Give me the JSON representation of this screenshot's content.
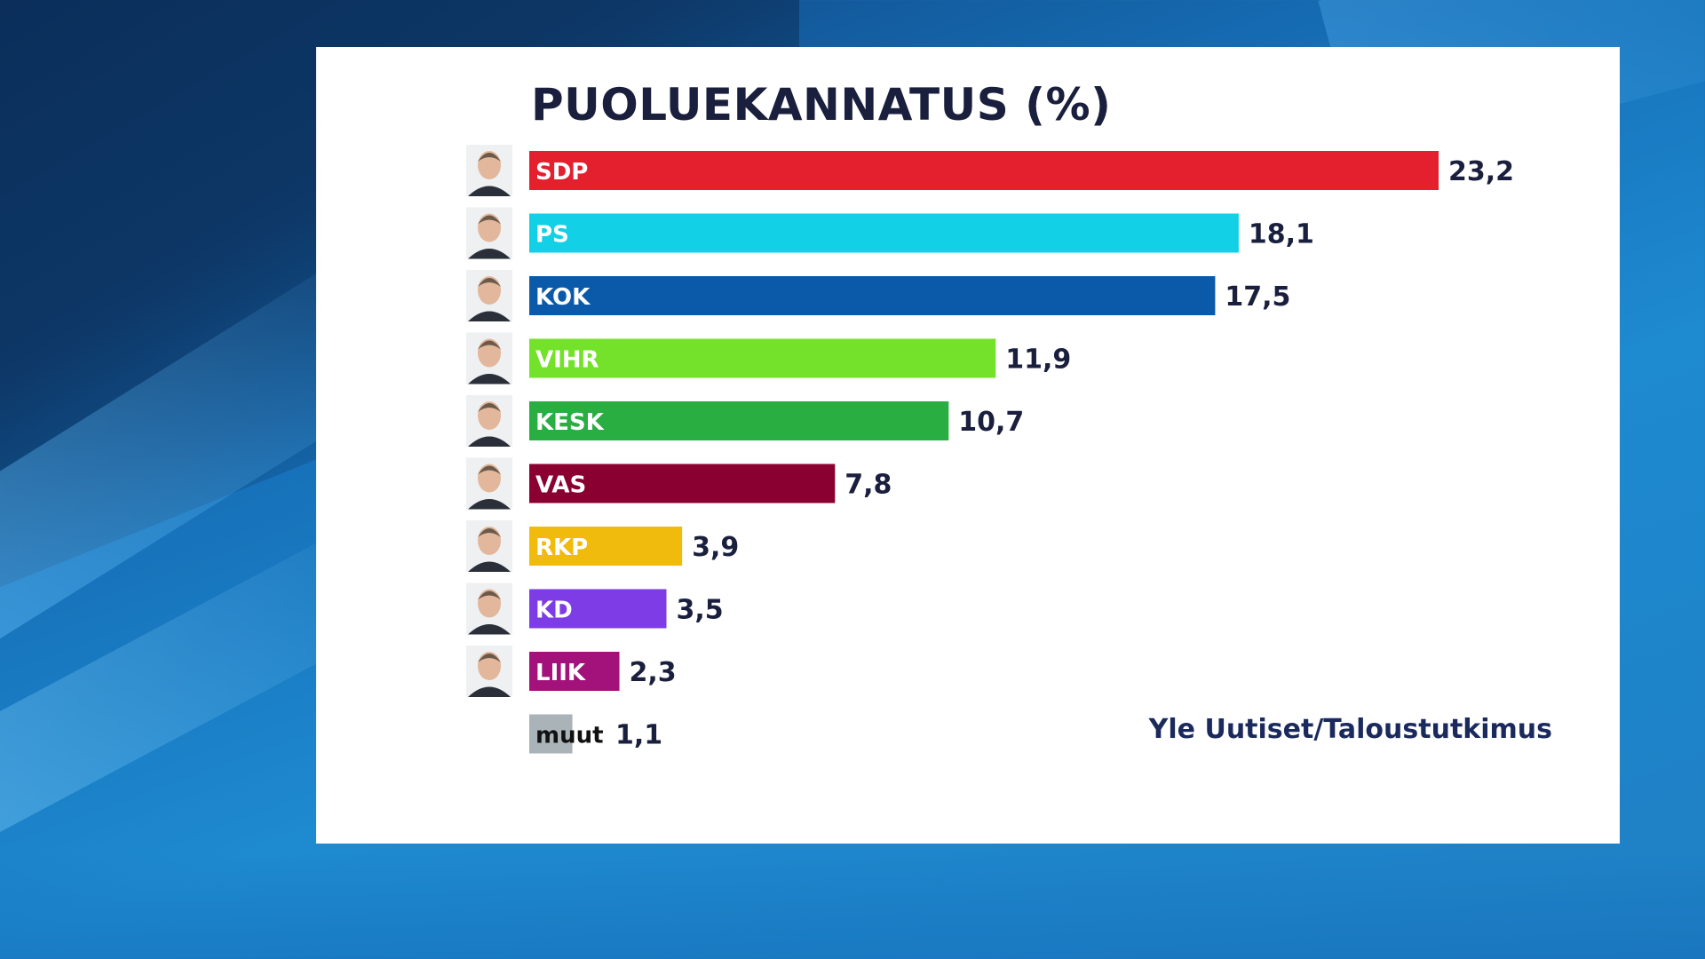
{
  "chart_data": {
    "type": "bar",
    "orientation": "horizontal",
    "title": "PUOLUEKANNATUS (%)",
    "categories": [
      "SDP",
      "PS",
      "KOK",
      "VIHR",
      "KESK",
      "VAS",
      "RKP",
      "KD",
      "LIIK",
      "muut"
    ],
    "values": [
      23.2,
      18.1,
      17.5,
      11.9,
      10.7,
      7.8,
      3.9,
      3.5,
      2.3,
      1.1
    ],
    "value_labels": [
      "23,2",
      "18,1",
      "17,5",
      "11,9",
      "10,7",
      "7,8",
      "3,9",
      "3,5",
      "2,3",
      "1,1"
    ],
    "colors": [
      "#e41f2e",
      "#12d0e6",
      "#0b5aaa",
      "#74e22b",
      "#29ae42",
      "#8a0030",
      "#f0bb0c",
      "#7d3ce6",
      "#a3127a",
      "#a9b3b8"
    ],
    "label_colors": [
      "#ffffff",
      "#ffffff",
      "#ffffff",
      "#ffffff",
      "#ffffff",
      "#ffffff",
      "#ffffff",
      "#ffffff",
      "#ffffff",
      "#111111"
    ],
    "has_portrait": [
      true,
      true,
      true,
      true,
      true,
      true,
      true,
      true,
      true,
      false
    ],
    "xlim": [
      0,
      25
    ],
    "grid": false,
    "legend": "none"
  },
  "source": "Yle Uutiset/Taloustutkimus",
  "background_color": "#1e86cc"
}
